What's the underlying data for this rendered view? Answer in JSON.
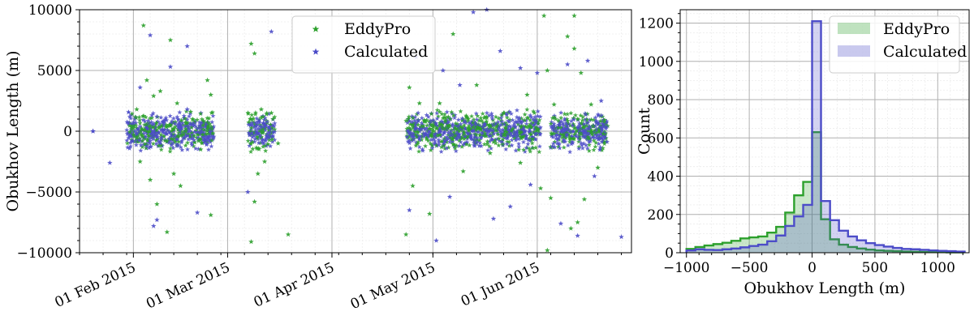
{
  "colors": {
    "eddypro": "#2ca02c",
    "calculated": "#4c4cc8",
    "grid_major": "#b0b0b0",
    "grid_minor": "#ececec"
  },
  "chart_data": [
    {
      "type": "scatter",
      "marker": "star",
      "ylabel": "Obukhov Length (m)",
      "xlabel": "",
      "ylim": [
        -10000,
        10000
      ],
      "xlim": [
        "2015-01-16",
        "2015-06-29"
      ],
      "yticks": [
        {
          "value": -10000,
          "label": "−10000"
        },
        {
          "value": -5000,
          "label": "−5000"
        },
        {
          "value": 0,
          "label": "0"
        },
        {
          "value": 5000,
          "label": "5000"
        },
        {
          "value": 10000,
          "label": "10000"
        }
      ],
      "xticks": [
        {
          "date": "2015-02-01",
          "label": "01 Feb 2015"
        },
        {
          "date": "2015-03-01",
          "label": "01 Mar 2015"
        },
        {
          "date": "2015-04-01",
          "label": "01 Apr 2015"
        },
        {
          "date": "2015-05-01",
          "label": "01 May 2015"
        },
        {
          "date": "2015-06-01",
          "label": "01 Jun 2015"
        }
      ],
      "grid": true,
      "legend_position": "top-right",
      "series": [
        {
          "name": "EddyPro",
          "points": [
            [
              "2015-02-02",
              1800
            ],
            [
              "2015-02-03",
              -2500
            ],
            [
              "2015-02-04",
              8700
            ],
            [
              "2015-02-05",
              4200
            ],
            [
              "2015-02-06",
              -4000
            ],
            [
              "2015-02-07",
              2900
            ],
            [
              "2015-02-08",
              -6000
            ],
            [
              "2015-02-09",
              3300
            ],
            [
              "2015-02-11",
              -8300
            ],
            [
              "2015-02-12",
              7500
            ],
            [
              "2015-02-13",
              -3500
            ],
            [
              "2015-02-14",
              2300
            ],
            [
              "2015-02-15",
              -4500
            ],
            [
              "2015-02-18",
              1600
            ],
            [
              "2015-02-21",
              -1500
            ],
            [
              "2015-02-23",
              4200
            ],
            [
              "2015-02-24",
              -6900
            ],
            [
              "2015-02-24",
              3000
            ],
            [
              "2015-03-08",
              -9100
            ],
            [
              "2015-03-08",
              7200
            ],
            [
              "2015-03-09",
              -5800
            ],
            [
              "2015-03-09",
              6400
            ],
            [
              "2015-03-10",
              -3500
            ],
            [
              "2015-03-11",
              1800
            ],
            [
              "2015-03-12",
              -2500
            ],
            [
              "2015-03-14",
              1500
            ],
            [
              "2015-03-16",
              -1000
            ],
            [
              "2015-03-19",
              -8500
            ],
            [
              "2015-04-23",
              -8500
            ],
            [
              "2015-04-24",
              3600
            ],
            [
              "2015-04-25",
              -4500
            ],
            [
              "2015-04-27",
              2300
            ],
            [
              "2015-04-30",
              -6800
            ],
            [
              "2015-05-03",
              2300
            ],
            [
              "2015-05-07",
              8000
            ],
            [
              "2015-05-10",
              -3300
            ],
            [
              "2015-05-14",
              3800
            ],
            [
              "2015-05-18",
              -1800
            ],
            [
              "2015-05-22",
              1500
            ],
            [
              "2015-05-27",
              -2600
            ],
            [
              "2015-05-29",
              3000
            ],
            [
              "2015-06-02",
              -4700
            ],
            [
              "2015-06-03",
              9500
            ],
            [
              "2015-06-04",
              -9800
            ],
            [
              "2015-06-04",
              5000
            ],
            [
              "2015-06-05",
              -5500
            ],
            [
              "2015-06-06",
              2200
            ],
            [
              "2015-06-10",
              7800
            ],
            [
              "2015-06-11",
              -8000
            ],
            [
              "2015-06-12",
              9500
            ],
            [
              "2015-06-12",
              6800
            ],
            [
              "2015-06-13",
              -7500
            ],
            [
              "2015-06-14",
              4800
            ],
            [
              "2015-06-15",
              -5600
            ],
            [
              "2015-06-17",
              2200
            ],
            [
              "2015-06-19",
              -3000
            ]
          ]
        },
        {
          "name": "Calculated",
          "points": [
            [
              "2015-01-20",
              0
            ],
            [
              "2015-01-25",
              -2600
            ],
            [
              "2015-02-03",
              3600
            ],
            [
              "2015-02-06",
              7900
            ],
            [
              "2015-02-07",
              -7800
            ],
            [
              "2015-02-08",
              -7300
            ],
            [
              "2015-02-12",
              5300
            ],
            [
              "2015-02-17",
              7000
            ],
            [
              "2015-02-20",
              -6700
            ],
            [
              "2015-02-17",
              1800
            ],
            [
              "2015-03-07",
              -5000
            ],
            [
              "2015-03-14",
              8200
            ],
            [
              "2015-04-24",
              -6500
            ],
            [
              "2015-04-26",
              6100
            ],
            [
              "2015-05-02",
              -9000
            ],
            [
              "2015-05-04",
              5000
            ],
            [
              "2015-05-06",
              -5400
            ],
            [
              "2015-05-09",
              3800
            ],
            [
              "2015-05-13",
              9800
            ],
            [
              "2015-05-17",
              10000
            ],
            [
              "2015-05-19",
              -7200
            ],
            [
              "2015-05-21",
              6600
            ],
            [
              "2015-05-24",
              -6200
            ],
            [
              "2015-05-27",
              5200
            ],
            [
              "2015-05-30",
              -4400
            ],
            [
              "2015-06-01",
              4800
            ],
            [
              "2015-06-08",
              -7600
            ],
            [
              "2015-06-10",
              5500
            ],
            [
              "2015-06-13",
              -8600
            ],
            [
              "2015-06-16",
              5800
            ],
            [
              "2015-06-18",
              -3700
            ],
            [
              "2015-06-20",
              2500
            ],
            [
              "2015-06-26",
              -8700
            ]
          ]
        }
      ]
    },
    {
      "type": "histogram",
      "xlabel": "Obukhov Length (m)",
      "ylabel": "Count",
      "xlim": [
        -1050,
        1250
      ],
      "ylim": [
        0,
        1270
      ],
      "xticks": [
        {
          "value": -1000,
          "label": "−1000"
        },
        {
          "value": -500,
          "label": "−500"
        },
        {
          "value": 0,
          "label": "0"
        },
        {
          "value": 500,
          "label": "500"
        },
        {
          "value": 1000,
          "label": "1000"
        }
      ],
      "yticks": [
        0,
        200,
        400,
        600,
        800,
        1000,
        1200
      ],
      "grid": true,
      "legend_position": "top-right",
      "bin_edges": [
        -1000,
        -929,
        -857,
        -786,
        -714,
        -643,
        -571,
        -500,
        -429,
        -357,
        -286,
        -214,
        -143,
        -71,
        0,
        71,
        143,
        214,
        286,
        357,
        429,
        500,
        571,
        643,
        714,
        786,
        857,
        929,
        1000,
        1071,
        1143,
        1214
      ],
      "series": [
        {
          "name": "EddyPro",
          "counts": [
            20,
            30,
            38,
            45,
            52,
            62,
            75,
            80,
            85,
            105,
            135,
            210,
            300,
            370,
            630,
            175,
            70,
            42,
            30,
            22,
            16,
            12,
            10,
            8,
            6,
            5,
            4,
            3,
            3,
            2,
            2
          ]
        },
        {
          "name": "Calculated",
          "counts": [
            12,
            18,
            15,
            14,
            18,
            22,
            28,
            35,
            42,
            60,
            90,
            140,
            190,
            250,
            1210,
            270,
            170,
            115,
            85,
            65,
            50,
            40,
            32,
            25,
            20,
            18,
            15,
            12,
            10,
            8,
            6
          ]
        }
      ]
    }
  ]
}
